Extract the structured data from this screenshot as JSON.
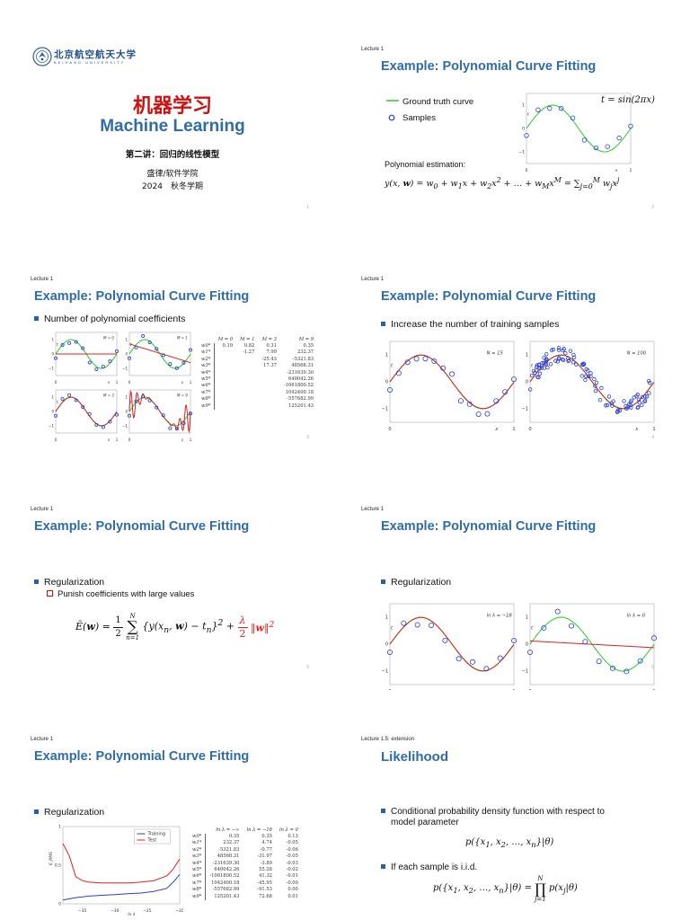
{
  "slide1": {
    "logo_text": "北京航空航天大学",
    "logo_sub": "BEIHANG UNIVERSITY",
    "title_cn": "机器学习",
    "title_en": "Machine Learning",
    "lecture": "第二讲：回归的线性模型",
    "author": "盛律/软件学院",
    "term": "2024　秋冬学期",
    "page": "1"
  },
  "slide2": {
    "lecture": "Lecture 1",
    "title": "Example: Polynomial Curve Fitting",
    "legend_gt": "Ground truth curve",
    "legend_samples": "Samples",
    "equation_label": "t = sin(2πx)",
    "estimation_label": "Polynomial estimation:",
    "page": "2"
  },
  "slide3": {
    "lecture": "Lecture 1",
    "title": "Example: Polynomial Curve Fitting",
    "bullet": "Number of polynomial coefficients",
    "panel_labels": [
      "M = 0",
      "M = 1",
      "M = 3",
      "M = 9"
    ],
    "table_headers": [
      "M = 0",
      "M = 1",
      "M = 3",
      "M = 9"
    ],
    "row_labels": [
      "w0*",
      "w1*",
      "w2*",
      "w3*",
      "w4*",
      "w5*",
      "w6*",
      "w7*",
      "w8*",
      "w9*"
    ],
    "table_rows": [
      [
        "0.19",
        "0.82",
        "0.31",
        "0.35"
      ],
      [
        "",
        "-1.27",
        "7.99",
        "232.37"
      ],
      [
        "",
        "",
        "-25.43",
        "-5321.83"
      ],
      [
        "",
        "",
        "17.37",
        "48568.31"
      ],
      [
        "",
        "",
        "",
        "-231639.30"
      ],
      [
        "",
        "",
        "",
        "640042.26"
      ],
      [
        "",
        "",
        "",
        "-1061800.52"
      ],
      [
        "",
        "",
        "",
        "1042400.18"
      ],
      [
        "",
        "",
        "",
        "-557682.99"
      ],
      [
        "",
        "",
        "",
        "125201.43"
      ]
    ],
    "page": "3"
  },
  "slide4": {
    "lecture": "Lecture 1",
    "title": "Example: Polynomial Curve Fitting",
    "bullet": "Increase the number of training samples",
    "panel_labels": [
      "N = 15",
      "N = 100"
    ],
    "page": "4"
  },
  "slide5": {
    "lecture": "Lecture 1",
    "title": "Example: Polynomial Curve Fitting",
    "bullet": "Regularization",
    "sub_bullet": "Punish coefficients with large values",
    "page": "5"
  },
  "slide6": {
    "lecture": "Lecture 1",
    "title": "Example: Polynomial Curve Fitting",
    "bullet": "Regularization",
    "panel_labels": [
      "ln λ = −18",
      "ln λ = 0"
    ],
    "page": "6"
  },
  "slide7": {
    "lecture": "Lecture 1",
    "title": "Example: Polynomial Curve Fitting",
    "bullet": "Regularization",
    "legend": [
      "Training",
      "Test"
    ],
    "ylabel": "E_RMS",
    "xlabel": "ln λ",
    "xticks": [
      "−35",
      "−30",
      "−25",
      "−20"
    ],
    "yticks": [
      "0",
      "0.5",
      "1"
    ],
    "table_headers": [
      "ln λ = −∞",
      "ln λ = −18",
      "ln λ = 0"
    ],
    "row_labels": [
      "w0*",
      "w1*",
      "w2*",
      "w3*",
      "w4*",
      "w5*",
      "w6*",
      "w7*",
      "w8*",
      "w9*"
    ],
    "table_rows": [
      [
        "0.35",
        "0.35",
        "0.13"
      ],
      [
        "232.37",
        "4.74",
        "-0.05"
      ],
      [
        "-5321.83",
        "-0.77",
        "-0.06"
      ],
      [
        "48568.31",
        "-31.97",
        "-0.05"
      ],
      [
        "-231639.30",
        "-3.89",
        "-0.03"
      ],
      [
        "640042.26",
        "55.28",
        "-0.02"
      ],
      [
        "-1061800.52",
        "41.32",
        "-0.01"
      ],
      [
        "1042400.18",
        "-45.95",
        "-0.00"
      ],
      [
        "-557682.99",
        "-91.53",
        "0.00"
      ],
      [
        "125201.43",
        "72.68",
        "0.01"
      ]
    ],
    "chart_data": {
      "type": "line",
      "xlabel": "ln λ",
      "ylabel": "E_RMS",
      "xlim": [
        -38,
        -20
      ],
      "ylim": [
        0,
        1
      ],
      "series": [
        {
          "name": "Training",
          "x": [
            -38,
            -36,
            -34,
            -32,
            -30,
            -28,
            -26,
            -24,
            -22,
            -21,
            -20
          ],
          "values": [
            0.05,
            0.08,
            0.1,
            0.11,
            0.12,
            0.13,
            0.14,
            0.16,
            0.2,
            0.28,
            0.38
          ]
        },
        {
          "name": "Test",
          "x": [
            -38,
            -37,
            -36,
            -35,
            -34,
            -32,
            -30,
            -28,
            -26,
            -24,
            -22,
            -21,
            -20
          ],
          "values": [
            0.78,
            0.62,
            0.35,
            0.3,
            0.28,
            0.27,
            0.27,
            0.27,
            0.28,
            0.3,
            0.36,
            0.45,
            0.58
          ]
        }
      ]
    }
  },
  "slide8": {
    "lecture": "Lecture 1.5: extension",
    "title": "Likelihood",
    "bullet1a": "Conditional probability density function with respect to",
    "bullet1b": "model parameter",
    "bullet2": "If each sample is i.i.d.",
    "page": "8"
  },
  "colors": {
    "title_blue": "#2f6ca8",
    "title_red": "#d01010",
    "curve_green": "#22cc22",
    "fit_red": "#e02020",
    "sample_blue": "#2a3fd0"
  }
}
